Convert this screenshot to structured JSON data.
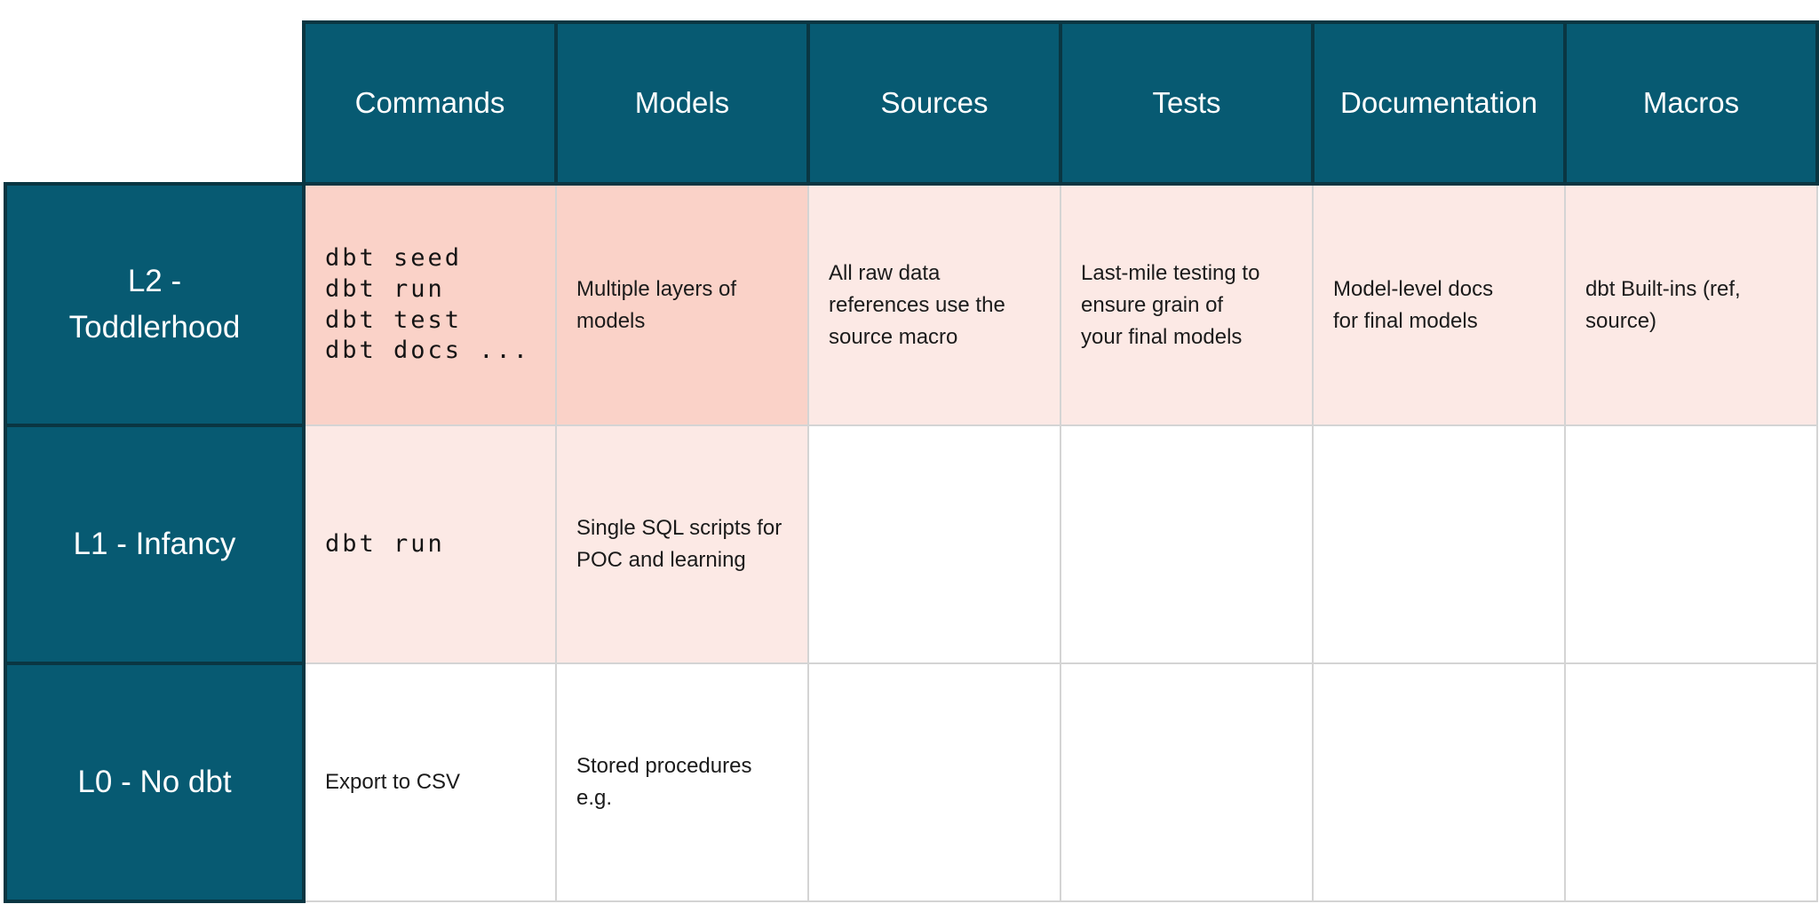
{
  "colors": {
    "header_teal": "#075A72",
    "dark_border": "#0A3642",
    "highlight_strong_pink": "#FAD2C8",
    "highlight_light_pink": "#FCE9E5",
    "grid_line_gray": "#D4D4D4",
    "header_text": "#FFFFFF",
    "body_text": "#1B1B1B"
  },
  "chart_data": {
    "type": "table",
    "columns": [
      "Commands",
      "Models",
      "Sources",
      "Tests",
      "Documentation",
      "Macros"
    ],
    "rows": [
      {
        "label": "L2 -\nToddlerhood",
        "cells": {
          "commands": "dbt seed\ndbt run\ndbt test\ndbt docs ...",
          "models": "Multiple layers of\nmodels",
          "sources": "All raw data\nreferences use the\nsource macro",
          "tests": "Last-mile testing to\nensure grain of\nyour final models",
          "documentation": "Model-level docs\nfor final models",
          "macros": "dbt Built-ins (ref,\nsource)"
        },
        "highlight": {
          "commands": "strong",
          "models": "strong",
          "sources": "light",
          "tests": "light",
          "documentation": "light",
          "macros": "light"
        }
      },
      {
        "label": "L1 - Infancy",
        "cells": {
          "commands": "dbt run",
          "models": "Single SQL scripts for\nPOC and learning",
          "sources": "",
          "tests": "",
          "documentation": "",
          "macros": ""
        },
        "highlight": {
          "commands": "light",
          "models": "light"
        }
      },
      {
        "label": "L0 - No dbt",
        "cells": {
          "commands": "Export to CSV",
          "models": "Stored procedures\ne.g.",
          "sources": "",
          "tests": "",
          "documentation": "",
          "macros": ""
        },
        "highlight": {}
      }
    ]
  }
}
